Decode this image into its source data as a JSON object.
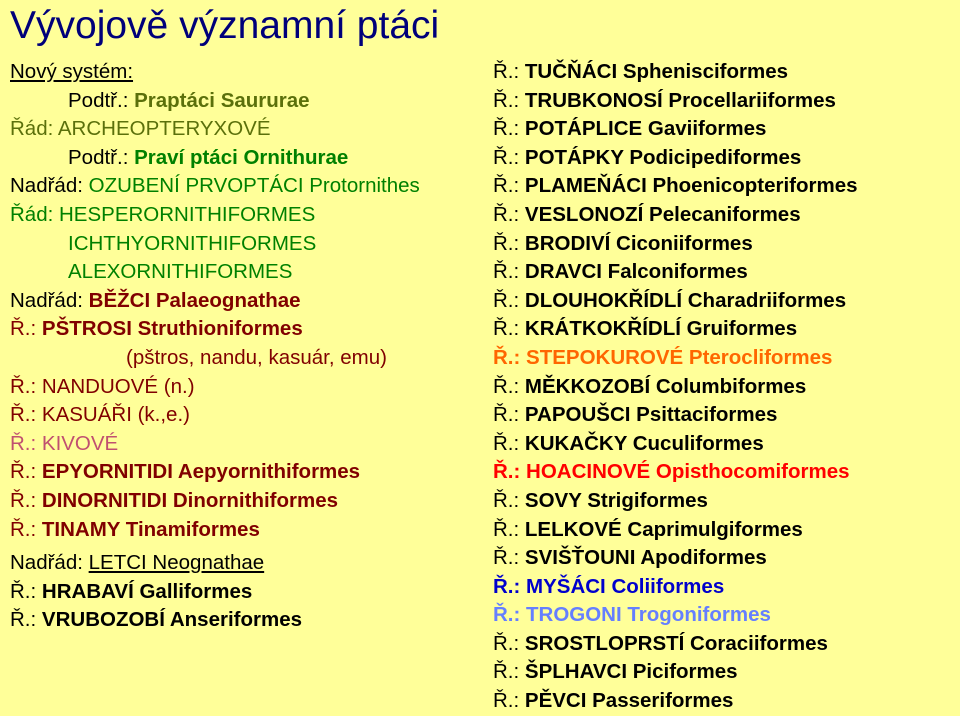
{
  "title": "Vývojově významní ptáci",
  "left": [
    {
      "cls": "row",
      "html": [
        {
          "t": "Nový systém:",
          "c": "c-black u"
        }
      ]
    },
    {
      "cls": "row in1",
      "html": [
        {
          "t": "Podtř.: ",
          "c": "c-black"
        },
        {
          "t": "Praptáci Saururae",
          "c": "c-olive bold"
        }
      ]
    },
    {
      "cls": "row",
      "html": [
        {
          "t": "Řád: ARCHEOPTERYXOVÉ",
          "c": "c-olive"
        }
      ]
    },
    {
      "cls": "row in1",
      "html": [
        {
          "t": "Podtř.: ",
          "c": "c-black"
        },
        {
          "t": "Praví ptáci Ornithurae",
          "c": "c-green bold"
        }
      ]
    },
    {
      "cls": "row",
      "html": [
        {
          "t": "Nadřád: ",
          "c": "c-black"
        },
        {
          "t": "OZUBENÍ PRVOPTÁCI Protornithes",
          "c": "c-green"
        }
      ]
    },
    {
      "cls": "row",
      "html": [
        {
          "t": "Řád: HESPERORNITHIFORMES",
          "c": "c-green"
        }
      ]
    },
    {
      "cls": "row in1",
      "html": [
        {
          "t": "ICHTHYORNITHIFORMES",
          "c": "c-green"
        }
      ]
    },
    {
      "cls": "row in1",
      "html": [
        {
          "t": "ALEXORNITHIFORMES",
          "c": "c-green"
        }
      ]
    },
    {
      "cls": "row",
      "html": [
        {
          "t": "Nadřád: ",
          "c": "c-black"
        },
        {
          "t": "BĚŽCI Palaeognathae",
          "c": "c-brown bold"
        }
      ]
    },
    {
      "cls": "row",
      "html": [
        {
          "t": "Ř.: ",
          "c": "c-brown"
        },
        {
          "t": "PŠTROSI Struthioniformes",
          "c": "c-brown bold"
        }
      ]
    },
    {
      "cls": "row in2",
      "html": [
        {
          "t": "(pštros, nandu, kasuár, emu)",
          "c": "c-brown"
        }
      ]
    },
    {
      "cls": "row",
      "html": [
        {
          "t": "Ř.: NANDUOVÉ (n.)",
          "c": "c-brown"
        }
      ]
    },
    {
      "cls": "row",
      "html": [
        {
          "t": "Ř.: KASUÁŘI (k.,e.)",
          "c": "c-brown"
        }
      ]
    },
    {
      "cls": "row",
      "html": [
        {
          "t": "Ř.: KIVOVÉ",
          "c": "c-pink"
        }
      ]
    },
    {
      "cls": "row",
      "html": [
        {
          "t": "Ř.: ",
          "c": "c-brown"
        },
        {
          "t": "EPYORNITIDI Aepyornithiformes",
          "c": "c-brown bold"
        }
      ]
    },
    {
      "cls": "row",
      "html": [
        {
          "t": "Ř.: ",
          "c": "c-brown"
        },
        {
          "t": "DINORNITIDI Dinornithiformes",
          "c": "c-brown bold"
        }
      ]
    },
    {
      "cls": "row",
      "html": [
        {
          "t": "Ř.: ",
          "c": "c-brown"
        },
        {
          "t": "TINAMY Tinamiformes",
          "c": "c-brown bold"
        }
      ]
    },
    {
      "cls": "row gap",
      "html": [
        {
          "t": "Nadřád:  ",
          "c": "c-black"
        },
        {
          "t": "LETCI Neognathae",
          "c": "c-black u"
        }
      ]
    },
    {
      "cls": "row",
      "html": [
        {
          "t": "Ř.: ",
          "c": "c-black"
        },
        {
          "t": "HRABAVÍ Galliformes",
          "c": "c-black bold"
        }
      ]
    },
    {
      "cls": "row",
      "html": [
        {
          "t": "Ř.: ",
          "c": "c-black"
        },
        {
          "t": "VRUBOZOBÍ Anseriformes",
          "c": "c-black bold"
        }
      ]
    }
  ],
  "right": [
    {
      "cls": "row",
      "html": [
        {
          "t": "Ř.: ",
          "c": "c-black"
        },
        {
          "t": "TUČŇÁCI Sphenisciformes",
          "c": "b-black"
        }
      ]
    },
    {
      "cls": "row",
      "html": [
        {
          "t": "Ř.: ",
          "c": "c-black"
        },
        {
          "t": "TRUBKONOSÍ Procellariiformes",
          "c": "b-black"
        }
      ]
    },
    {
      "cls": "row",
      "html": [
        {
          "t": "Ř.: ",
          "c": "c-black"
        },
        {
          "t": "POTÁPLICE Gaviiformes",
          "c": "b-black"
        }
      ]
    },
    {
      "cls": "row",
      "html": [
        {
          "t": "Ř.: ",
          "c": "c-black"
        },
        {
          "t": "POTÁPKY Podicipediformes",
          "c": "b-black"
        }
      ]
    },
    {
      "cls": "row",
      "html": [
        {
          "t": "Ř.: ",
          "c": "c-black"
        },
        {
          "t": "PLAMEŇÁCI Phoenicopteriformes",
          "c": "b-black"
        }
      ]
    },
    {
      "cls": "row",
      "html": [
        {
          "t": "Ř.: ",
          "c": "c-black"
        },
        {
          "t": "VESLONOZÍ Pelecaniformes",
          "c": "b-black"
        }
      ]
    },
    {
      "cls": "row",
      "html": [
        {
          "t": "Ř.: ",
          "c": "c-black"
        },
        {
          "t": "BRODIVÍ Ciconiiformes",
          "c": "b-black"
        }
      ]
    },
    {
      "cls": "row",
      "html": [
        {
          "t": "Ř.: ",
          "c": "c-black"
        },
        {
          "t": "DRAVCI Falconiformes",
          "c": "b-black"
        }
      ]
    },
    {
      "cls": "row",
      "html": [
        {
          "t": "Ř.: ",
          "c": "c-black"
        },
        {
          "t": "DLOUHOKŘÍDLÍ Charadriiformes",
          "c": "b-black"
        }
      ]
    },
    {
      "cls": "row",
      "html": [
        {
          "t": "Ř.: ",
          "c": "c-black"
        },
        {
          "t": "KRÁTKOKŘÍDLÍ Gruiformes",
          "c": "b-black"
        }
      ]
    },
    {
      "cls": "row",
      "html": [
        {
          "t": "Ř.: STEPOKUROVÉ Pterocliformes",
          "c": "c-orange bold"
        }
      ]
    },
    {
      "cls": "row",
      "html": [
        {
          "t": "Ř.: ",
          "c": "c-black"
        },
        {
          "t": "MĚKKOZOBÍ Columbiformes",
          "c": "b-black"
        }
      ]
    },
    {
      "cls": "row",
      "html": [
        {
          "t": "Ř.: ",
          "c": "c-black"
        },
        {
          "t": "PAPOUŠCI Psittaciformes",
          "c": "b-black"
        }
      ]
    },
    {
      "cls": "row",
      "html": [
        {
          "t": "Ř.: ",
          "c": "c-black"
        },
        {
          "t": "KUKAČKY Cuculiformes",
          "c": "b-black"
        }
      ]
    },
    {
      "cls": "row",
      "html": [
        {
          "t": "Ř.: HOACINOVÉ Opisthocomiformes",
          "c": "c-red bold"
        }
      ]
    },
    {
      "cls": "row",
      "html": [
        {
          "t": "Ř.: ",
          "c": "c-black"
        },
        {
          "t": "SOVY Strigiformes",
          "c": "b-black"
        }
      ]
    },
    {
      "cls": "row",
      "html": [
        {
          "t": "Ř.: ",
          "c": "c-black"
        },
        {
          "t": "LELKOVÉ Caprimulgiformes",
          "c": "b-black"
        }
      ]
    },
    {
      "cls": "row",
      "html": [
        {
          "t": "Ř.: ",
          "c": "c-black"
        },
        {
          "t": "SVIŠŤOUNI Apodiformes",
          "c": "b-black"
        }
      ]
    },
    {
      "cls": "row",
      "html": [
        {
          "t": "Ř.: MYŠÁCI Coliiformes",
          "c": "c-blue bold"
        }
      ]
    },
    {
      "cls": "row",
      "html": [
        {
          "t": "Ř.: TROGONI Trogoniformes",
          "c": "c-lblue bold"
        }
      ]
    },
    {
      "cls": "row",
      "html": [
        {
          "t": "Ř.: ",
          "c": "c-black"
        },
        {
          "t": "SROSTLOPRSTÍ Coraciiformes",
          "c": "b-black"
        }
      ]
    },
    {
      "cls": "row",
      "html": [
        {
          "t": "Ř.: ",
          "c": "c-black"
        },
        {
          "t": "ŠPLHAVCI Piciformes",
          "c": "b-black"
        }
      ]
    },
    {
      "cls": "row",
      "html": [
        {
          "t": "Ř.: ",
          "c": "c-black"
        },
        {
          "t": "PĚVCI Passeriformes",
          "c": "b-black"
        }
      ]
    }
  ]
}
